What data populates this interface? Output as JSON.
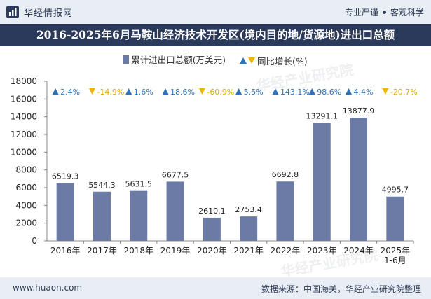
{
  "header": {
    "brand_name": "华经情报网",
    "tagline_left": "专业严谨",
    "tagline_right": "客观科学"
  },
  "title": "2016-2025年6月马鞍山经济技术开发区(境内目的地/货源地)进出口总额",
  "legend": {
    "bar_label": "累计进出口总额(万美元)",
    "growth_label": "同比增长(%)"
  },
  "footer": {
    "website": "www.huaon.com",
    "source": "数据来源：中国海关，华经产业研究院整理"
  },
  "watermarks": [
    "华经产业研究院",
    "www.huaon.com"
  ],
  "colors": {
    "bar": "#6b7ba6",
    "up": "#2e72b8",
    "down": "#f2b400"
  },
  "chart_data": {
    "type": "bar",
    "categories": [
      "2016年",
      "2017年",
      "2018年",
      "2019年",
      "2020年",
      "2021年",
      "2022年",
      "2023年",
      "2024年",
      "2025年\n1-6月"
    ],
    "series": [
      {
        "name": "累计进出口总额(万美元)",
        "values": [
          6519.3,
          5544.3,
          5631.5,
          6677.5,
          2610.1,
          2753.4,
          6692.8,
          13291.1,
          13877.9,
          4995.7
        ]
      },
      {
        "name": "同比增长(%)",
        "values": [
          2.4,
          -14.9,
          1.6,
          18.6,
          -60.9,
          5.5,
          143.1,
          98.6,
          4.4,
          -20.7
        ]
      }
    ],
    "value_labels": [
      "6519.3",
      "5544.3",
      "5631.5",
      "6677.5",
      "2610.1",
      "2753.4",
      "6692.8",
      "13291.1",
      "13877.9",
      "4995.7"
    ],
    "growth_labels": [
      "2.4%",
      "-14.9%",
      "1.6%",
      "18.6%",
      "-60.9%",
      "5.5%",
      "143.1%",
      "98.6%",
      "4.4%",
      "-20.7%"
    ],
    "ylim": [
      0,
      18000
    ],
    "yticks": [
      0,
      2000,
      4000,
      6000,
      8000,
      10000,
      12000,
      14000,
      16000,
      18000
    ],
    "legend_position": "top"
  }
}
